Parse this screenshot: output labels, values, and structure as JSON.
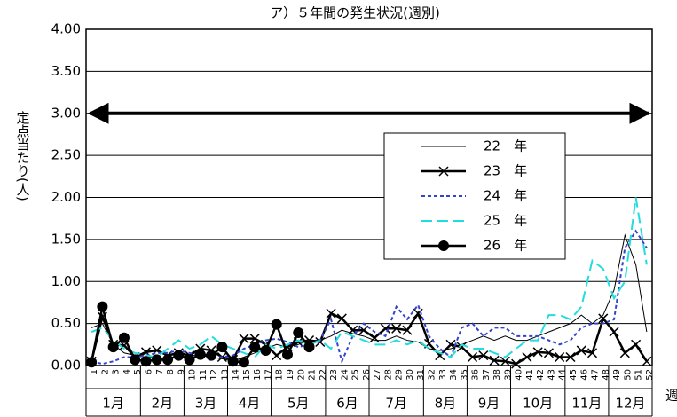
{
  "chart_data": {
    "type": "line",
    "title": "ア）５年間の発生状況(週別)",
    "y_label": "定点当たり(人)",
    "x_label": "週",
    "categories": [
      "1",
      "2",
      "3",
      "4",
      "5",
      "6",
      "7",
      "8",
      "9",
      "10",
      "11",
      "12",
      "13",
      "14",
      "15",
      "16",
      "17",
      "18",
      "19",
      "20",
      "21",
      "22",
      "23",
      "24",
      "25",
      "26",
      "27",
      "28",
      "29",
      "30",
      "31",
      "32",
      "33",
      "34",
      "35",
      "36",
      "37",
      "38",
      "39",
      "40",
      "41",
      "42",
      "43",
      "44",
      "45",
      "46",
      "47",
      "48",
      "49",
      "50",
      "51",
      "52"
    ],
    "month_groups": [
      {
        "label": "1月",
        "weeks": 5
      },
      {
        "label": "2月",
        "weeks": 4
      },
      {
        "label": "3月",
        "weeks": 4
      },
      {
        "label": "4月",
        "weeks": 4
      },
      {
        "label": "5月",
        "weeks": 5
      },
      {
        "label": "6月",
        "weeks": 4
      },
      {
        "label": "7月",
        "weeks": 5
      },
      {
        "label": "8月",
        "weeks": 4
      },
      {
        "label": "9月",
        "weeks": 4
      },
      {
        "label": "10月",
        "weeks": 5
      },
      {
        "label": "11月",
        "weeks": 4
      },
      {
        "label": "12月",
        "weeks": 4
      }
    ],
    "ylim": [
      0,
      4
    ],
    "yticks": [
      {
        "value": 0,
        "label": "0.00"
      },
      {
        "value": 0.5,
        "label": "0.50"
      },
      {
        "value": 1,
        "label": "1.00"
      },
      {
        "value": 1.5,
        "label": "1.50"
      },
      {
        "value": 2,
        "label": "2.00"
      },
      {
        "value": 2.5,
        "label": "2.50"
      },
      {
        "value": 3,
        "label": "3.00"
      },
      {
        "value": 3.5,
        "label": "3.50"
      },
      {
        "value": 4,
        "label": "4.00"
      }
    ],
    "grid": true,
    "reference_arrow": 3,
    "series": [
      {
        "name": "22　年",
        "color": "#000000",
        "width": 1,
        "dash": "none",
        "marker": "none",
        "values": [
          0.45,
          0.5,
          0.25,
          0.15,
          0.12,
          0.1,
          0.1,
          0.08,
          0.1,
          0.12,
          0.12,
          0.1,
          0.08,
          0.05,
          0.1,
          0.15,
          0.2,
          0.25,
          0.22,
          0.25,
          0.3,
          0.3,
          0.35,
          0.42,
          0.38,
          0.35,
          0.3,
          0.3,
          0.35,
          0.3,
          0.28,
          0.2,
          0.18,
          0.2,
          0.25,
          0.3,
          0.35,
          0.3,
          0.35,
          0.3,
          0.3,
          0.35,
          0.4,
          0.45,
          0.5,
          0.6,
          0.5,
          0.6,
          0.9,
          1.55,
          1.2,
          0.4
        ]
      },
      {
        "name": "23　年",
        "color": "#000000",
        "width": 2.5,
        "dash": "none",
        "marker": "x",
        "values": [
          0.05,
          0.58,
          0.25,
          0.24,
          0.1,
          0.16,
          0.18,
          0.12,
          0.15,
          0.12,
          0.2,
          0.18,
          0.1,
          0.07,
          0.32,
          0.32,
          0.25,
          0.12,
          0.22,
          0.28,
          0.3,
          0.28,
          0.62,
          0.56,
          0.42,
          0.42,
          0.33,
          0.44,
          0.44,
          0.42,
          0.62,
          0.26,
          0.12,
          0.25,
          0.22,
          0.1,
          0.12,
          0.06,
          0.05,
          0.02,
          0.1,
          0.16,
          0.15,
          0.1,
          0.1,
          0.18,
          0.15,
          0.56,
          0.4,
          0.15,
          0.25,
          0.05
        ]
      },
      {
        "name": "24　年",
        "color": "#3344cc",
        "width": 2,
        "dash": "4 3",
        "marker": "none",
        "values": [
          0.05,
          0.02,
          0.05,
          0.1,
          0.1,
          0.12,
          0.15,
          0.15,
          0.18,
          0.15,
          0.12,
          0.1,
          0.1,
          0.12,
          0.2,
          0.25,
          0.3,
          0.32,
          0.28,
          0.22,
          0.25,
          0.3,
          0.55,
          0.05,
          0.35,
          0.5,
          0.4,
          0.35,
          0.7,
          0.55,
          0.72,
          0.35,
          0.2,
          0.1,
          0.45,
          0.5,
          0.35,
          0.45,
          0.45,
          0.35,
          0.35,
          0.35,
          0.3,
          0.25,
          0.3,
          0.45,
          0.5,
          0.5,
          0.55,
          1.4,
          1.6,
          1.4
        ]
      },
      {
        "name": "25　年",
        "color": "#22dddd",
        "width": 2,
        "dash": "12 6",
        "marker": "none",
        "values": [
          0.4,
          0.45,
          0.3,
          0.2,
          0.15,
          0.12,
          0.1,
          0.2,
          0.3,
          0.2,
          0.25,
          0.35,
          0.25,
          0.2,
          0.15,
          0.1,
          0.25,
          0.2,
          0.25,
          0.3,
          0.25,
          0.3,
          0.2,
          0.4,
          0.35,
          0.3,
          0.25,
          0.25,
          0.3,
          0.25,
          0.3,
          0.2,
          0.15,
          0.1,
          0.25,
          0.2,
          0.2,
          0.15,
          0.1,
          0.2,
          0.3,
          0.3,
          0.6,
          0.6,
          0.55,
          0.7,
          1.25,
          1.15,
          0.8,
          1.0,
          2.0,
          1.2
        ]
      },
      {
        "name": "26　年",
        "color": "#000000",
        "width": 2.5,
        "dash": "none",
        "marker": "circle",
        "values": [
          0.04,
          0.7,
          0.22,
          0.33,
          0.07,
          0.05,
          0.07,
          0.07,
          0.12,
          0.07,
          0.13,
          0.12,
          0.22,
          0.05,
          0.04,
          0.22,
          0.18,
          0.49,
          0.13,
          0.39,
          0.22,
          null,
          null,
          null,
          null,
          null,
          null,
          null,
          null,
          null,
          null,
          null,
          null,
          null,
          null,
          null,
          null,
          null,
          null,
          null,
          null,
          null,
          null,
          null,
          null,
          null,
          null,
          null,
          null,
          null,
          null,
          null
        ]
      }
    ]
  }
}
